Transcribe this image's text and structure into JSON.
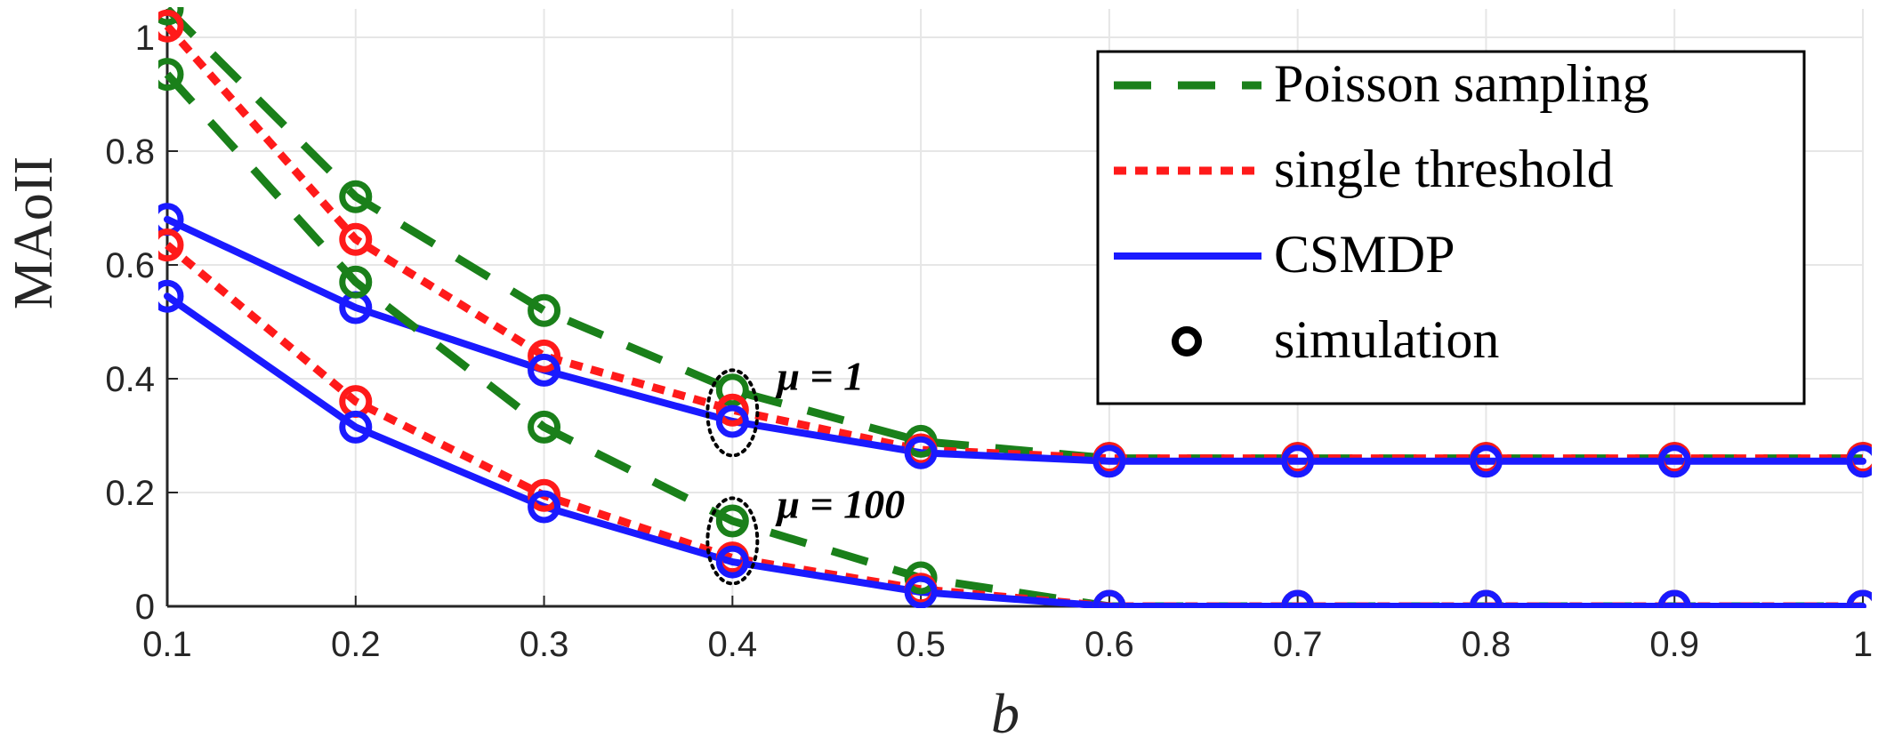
{
  "chart_data": {
    "type": "line",
    "title": "",
    "xlabel": "b",
    "ylabel": "MAoII",
    "xlim": [
      0.1,
      1
    ],
    "ylim": [
      0,
      1.05
    ],
    "grid": true,
    "x": [
      0.1,
      0.2,
      0.3,
      0.4,
      0.5,
      0.6,
      0.7,
      0.8,
      0.9,
      1.0
    ],
    "x_ticks": [
      "0.1",
      "0.2",
      "0.3",
      "0.4",
      "0.5",
      "0.6",
      "0.7",
      "0.8",
      "0.9",
      "1"
    ],
    "y_ticks": [
      0,
      0.2,
      0.4,
      0.6,
      0.8,
      1
    ],
    "y_tick_labels": [
      "0",
      "0.2",
      "0.4",
      "0.6",
      "0.8",
      "1"
    ],
    "colors": {
      "poisson": "#1a801a",
      "single": "#ff1a1a",
      "csmdp": "#1a1aff",
      "marker": "#000000"
    },
    "series": [
      {
        "key": "poisson",
        "name": "Poisson sampling",
        "mu": "1",
        "style": "dashed",
        "values": [
          1.05,
          0.72,
          0.52,
          0.38,
          0.29,
          0.26,
          0.26,
          0.26,
          0.26,
          0.26
        ]
      },
      {
        "key": "single",
        "name": "single threshold",
        "mu": "1",
        "style": "dotted",
        "values": [
          1.02,
          0.645,
          0.44,
          0.345,
          0.275,
          0.26,
          0.26,
          0.26,
          0.26,
          0.26
        ]
      },
      {
        "key": "csmdp",
        "name": "CSMDP",
        "mu": "1",
        "style": "solid",
        "values": [
          0.68,
          0.525,
          0.415,
          0.325,
          0.27,
          0.255,
          0.255,
          0.255,
          0.255,
          0.255
        ]
      },
      {
        "key": "poisson",
        "name": "Poisson sampling",
        "mu": "100",
        "style": "dashed",
        "values": [
          0.935,
          0.57,
          0.315,
          0.15,
          0.05,
          0.0,
          0.0,
          0.0,
          0.0,
          0.0
        ]
      },
      {
        "key": "single",
        "name": "single threshold",
        "mu": "100",
        "style": "dotted",
        "values": [
          0.635,
          0.36,
          0.195,
          0.085,
          0.03,
          0.0,
          0.0,
          0.0,
          0.0,
          0.0
        ]
      },
      {
        "key": "csmdp",
        "name": "CSMDP",
        "mu": "100",
        "style": "solid",
        "values": [
          0.545,
          0.315,
          0.175,
          0.078,
          0.025,
          0.0,
          0.0,
          0.0,
          0.0,
          0.0
        ]
      }
    ],
    "legend": {
      "position": "top-right",
      "entries": [
        {
          "key": "poisson",
          "label": "Poisson sampling",
          "style": "dashed"
        },
        {
          "key": "single",
          "label": "single threshold",
          "style": "dotted"
        },
        {
          "key": "csmdp",
          "label": "CSMDP",
          "style": "solid"
        },
        {
          "key": "marker",
          "label": "simulation",
          "style": "marker"
        }
      ]
    },
    "annotations": [
      {
        "label": "μ = 1",
        "x": 0.4,
        "y": 0.34
      },
      {
        "label": "μ = 100",
        "x": 0.4,
        "y": 0.115
      }
    ]
  }
}
